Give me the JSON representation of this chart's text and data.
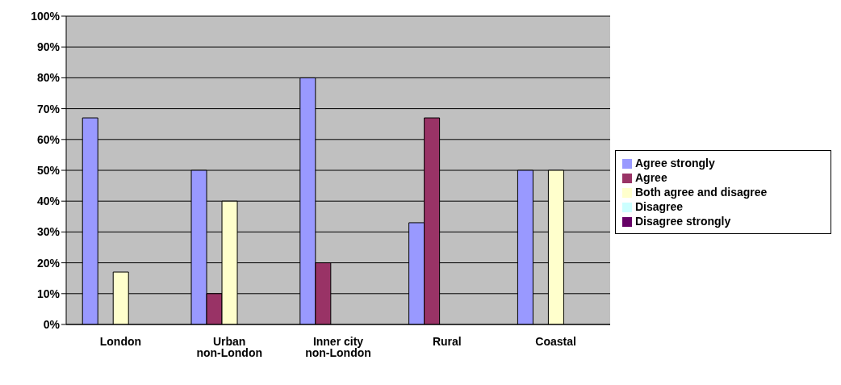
{
  "chart_data": {
    "type": "bar",
    "categories": [
      "London",
      "Urban non-London",
      "Inner city non-London",
      "Rural",
      "Coastal"
    ],
    "series": [
      {
        "name": "Agree strongly",
        "color": "#9999ff",
        "values": [
          67,
          50,
          80,
          33,
          50
        ]
      },
      {
        "name": "Agree",
        "color": "#993366",
        "values": [
          0,
          10,
          20,
          67,
          0
        ]
      },
      {
        "name": "Both agree and disagree",
        "color": "#ffffcc",
        "values": [
          17,
          40,
          0,
          0,
          50
        ]
      },
      {
        "name": "Disagree",
        "color": "#ccffff",
        "values": [
          0,
          0,
          0,
          0,
          0
        ]
      },
      {
        "name": "Disagree strongly",
        "color": "#660066",
        "values": [
          0,
          0,
          0,
          0,
          0
        ]
      }
    ],
    "ylim": [
      0,
      100
    ],
    "yticks": [
      {
        "value": 0,
        "label": "0%"
      },
      {
        "value": 10,
        "label": "10%"
      },
      {
        "value": 20,
        "label": "20%"
      },
      {
        "value": 30,
        "label": "30%"
      },
      {
        "value": 40,
        "label": "40%"
      },
      {
        "value": 50,
        "label": "50%"
      },
      {
        "value": 60,
        "label": "60%"
      },
      {
        "value": 70,
        "label": "70%"
      },
      {
        "value": 80,
        "label": "80%"
      },
      {
        "value": 90,
        "label": "90%"
      },
      {
        "value": 100,
        "label": "100%"
      }
    ],
    "grid": "y",
    "legend": "right"
  }
}
